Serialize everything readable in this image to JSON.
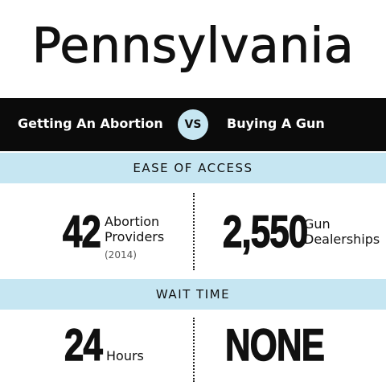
{
  "title": "Pennsylvania",
  "header": {
    "left": "Getting An Abortion",
    "vs": "VS",
    "right": "Buying A Gun"
  },
  "sections": [
    {
      "title": "EASE OF ACCESS",
      "left": {
        "value": "42",
        "label": [
          "Abortion",
          "Providers"
        ],
        "note": "(2014)"
      },
      "right": {
        "value": "2,550",
        "label": [
          "Gun",
          "Dealerships"
        ]
      }
    },
    {
      "title": "WAIT TIME",
      "left": {
        "value": "24",
        "label": [
          "Hours"
        ]
      },
      "right": {
        "value": "NONE"
      }
    }
  ]
}
